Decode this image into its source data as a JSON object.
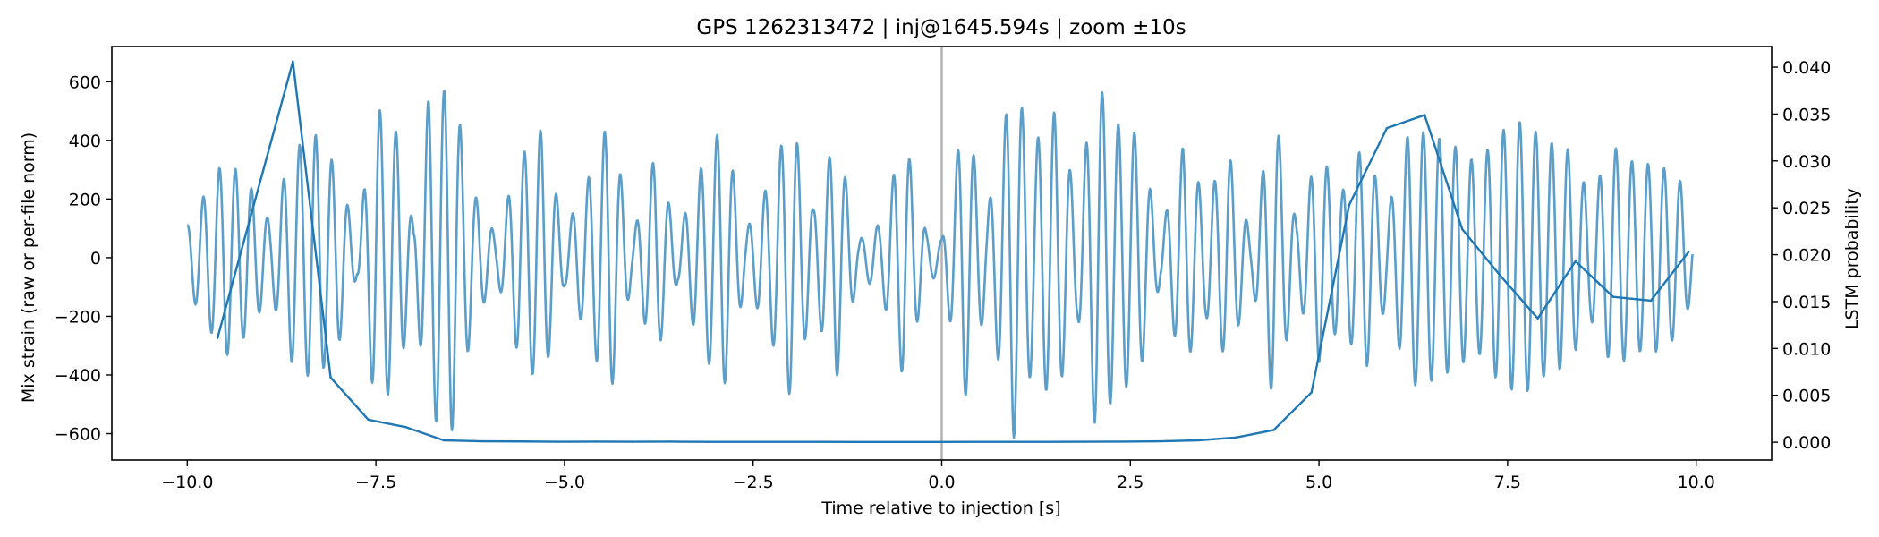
{
  "chart_data": {
    "type": "line",
    "title": "GPS 1262313472 | inj@1645.594s | zoom ±10s",
    "xlabel": "Time relative to injection [s]",
    "ylabel_left": "Mix strain (raw or per-file norm)",
    "ylabel_right": "LSTM probability",
    "xlim": [
      -11,
      11
    ],
    "ylim_left": [
      -690,
      720
    ],
    "ylim_right": [
      -0.0019,
      0.0422
    ],
    "x_ticks": [
      -10.0,
      -7.5,
      -5.0,
      -2.5,
      0.0,
      2.5,
      5.0,
      7.5,
      10.0
    ],
    "x_tick_labels": [
      "−10.0",
      "−7.5",
      "−5.0",
      "−2.5",
      "0.0",
      "2.5",
      "5.0",
      "7.5",
      "10.0"
    ],
    "y_left_ticks": [
      -600,
      -400,
      -200,
      0,
      200,
      400,
      600
    ],
    "y_left_tick_labels": [
      "−600",
      "−400",
      "−200",
      "0",
      "200",
      "400",
      "600"
    ],
    "y_right_ticks": [
      0.0,
      0.005,
      0.01,
      0.015,
      0.02,
      0.025,
      0.03,
      0.035,
      0.04
    ],
    "y_right_tick_labels": [
      "0.000",
      "0.005",
      "0.010",
      "0.015",
      "0.020",
      "0.025",
      "0.030",
      "0.035",
      "0.040"
    ],
    "injection_marker_x": 0.0,
    "grid": false,
    "colors": {
      "strain": "#5a9ec9",
      "probability": "#1f77b4",
      "marker": "#b3b3b3"
    },
    "series": [
      {
        "axis": "left",
        "style": "oscillating",
        "x_range": [
          -10.0,
          9.95
        ],
        "envelope_x": [
          -10.0,
          -9.5,
          -9.2,
          -8.9,
          -8.6,
          -8.3,
          -8.0,
          -7.75,
          -7.5,
          -7.2,
          -7.0,
          -6.8,
          -6.6,
          -6.5,
          -6.2,
          -5.9,
          -5.6,
          -5.3,
          -5.0,
          -4.7,
          -4.4,
          -4.1,
          -3.8,
          -3.5,
          -3.2,
          -2.9,
          -2.6,
          -2.3,
          -2.0,
          -1.7,
          -1.4,
          -1.1,
          -0.8,
          -0.5,
          -0.2,
          0.0,
          0.3,
          0.6,
          0.95,
          1.2,
          1.5,
          1.8,
          2.05,
          2.3,
          2.6,
          2.9,
          3.2,
          3.5,
          3.8,
          4.1,
          4.4,
          4.7,
          5.0,
          5.3,
          5.6,
          5.9,
          6.2,
          6.5,
          6.8,
          7.1,
          7.4,
          7.7,
          8.0,
          8.3,
          8.6,
          8.9,
          9.2,
          9.5,
          9.8,
          9.95
        ],
        "envelope": [
          110,
          340,
          260,
          120,
          370,
          420,
          300,
          60,
          520,
          420,
          100,
          550,
          570,
          600,
          220,
          70,
          340,
          440,
          90,
          260,
          480,
          70,
          350,
          80,
          300,
          460,
          90,
          250,
          480,
          160,
          420,
          60,
          120,
          420,
          80,
          60,
          490,
          150,
          620,
          380,
          500,
          200,
          610,
          460,
          420,
          80,
          380,
          200,
          360,
          70,
          500,
          120,
          360,
          220,
          400,
          150,
          440,
          420,
          380,
          320,
          430,
          470,
          400,
          370,
          210,
          380,
          320,
          320,
          260,
          120
        ],
        "cycles_per_second": 4.7
      },
      {
        "axis": "right",
        "style": "line",
        "x": [
          -9.6,
          -8.6,
          -8.1,
          -7.6,
          -7.1,
          -6.6,
          -6.1,
          -5.6,
          -5.1,
          -4.6,
          -4.1,
          -3.6,
          -3.1,
          -2.6,
          -2.1,
          -1.6,
          -1.1,
          -0.6,
          -0.1,
          0.4,
          0.9,
          1.4,
          1.9,
          2.4,
          2.9,
          3.4,
          3.9,
          4.4,
          4.9,
          5.4,
          5.9,
          6.4,
          6.9,
          7.4,
          7.9,
          8.4,
          8.9,
          9.4,
          9.9
        ],
        "values": [
          0.0111,
          0.0406,
          0.0069,
          0.0024,
          0.0016,
          0.0002,
          0.0001,
          8e-05,
          5e-05,
          6e-05,
          5e-05,
          6e-05,
          4e-05,
          4e-05,
          4e-05,
          4e-05,
          3e-05,
          3e-05,
          3e-05,
          4e-05,
          4e-05,
          4e-05,
          5e-05,
          6e-05,
          0.0001,
          0.0002,
          0.0005,
          0.0013,
          0.0053,
          0.0253,
          0.0335,
          0.0349,
          0.0227,
          0.0178,
          0.0132,
          0.0193,
          0.0155,
          0.0151,
          0.0203
        ]
      }
    ]
  }
}
